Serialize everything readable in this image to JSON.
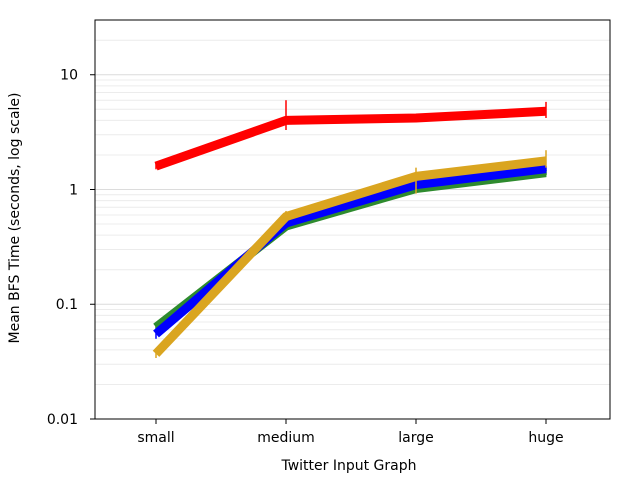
{
  "chart_data": {
    "type": "line",
    "title": "",
    "xlabel": "Twitter Input Graph",
    "ylabel": "Mean BFS Time (seconds, log scale)",
    "yscale": "log",
    "ylim": [
      0.01,
      30
    ],
    "yticks": [
      0.01,
      0.1,
      1,
      10
    ],
    "ytick_labels": [
      "0.01",
      "0.1",
      "1",
      "10"
    ],
    "categories": [
      "small",
      "medium",
      "large",
      "huge"
    ],
    "grid": "horizontal minor gridlines",
    "legend": "none",
    "series": [
      {
        "color": "#2e8b2e",
        "values": [
          0.063,
          0.48,
          1.02,
          1.4
        ],
        "err_low": [
          0.058,
          0.45,
          0.97,
          1.33
        ],
        "err_high": [
          0.068,
          0.51,
          1.07,
          1.47
        ]
      },
      {
        "color": "#0000ff",
        "values": [
          0.055,
          0.51,
          1.1,
          1.52
        ],
        "err_low": [
          0.05,
          0.48,
          1.04,
          1.45
        ],
        "err_high": [
          0.06,
          0.54,
          1.16,
          1.6
        ]
      },
      {
        "color": "#ff0000",
        "values": [
          1.6,
          4.0,
          4.2,
          4.8
        ],
        "err_low": [
          1.5,
          3.3,
          4.0,
          4.2
        ],
        "err_high": [
          1.7,
          6.0,
          4.4,
          5.8
        ]
      },
      {
        "color": "#daa520",
        "values": [
          0.037,
          0.58,
          1.3,
          1.78
        ],
        "err_low": [
          0.034,
          0.54,
          0.92,
          1.55
        ],
        "err_high": [
          0.04,
          0.65,
          1.55,
          2.2
        ]
      }
    ]
  }
}
